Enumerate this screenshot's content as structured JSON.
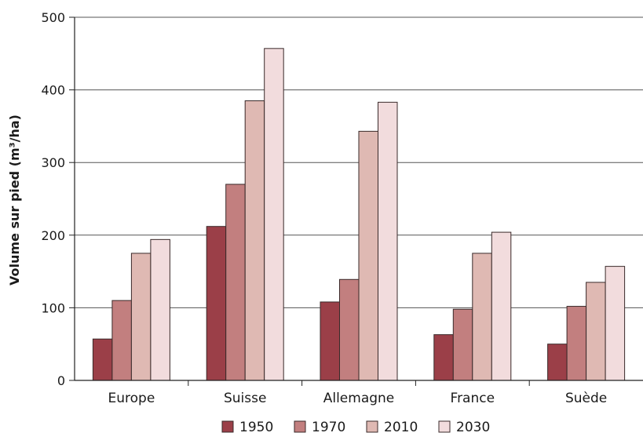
{
  "chart_data": {
    "type": "bar",
    "ylabel": "Volume sur pied (m³/ha)",
    "xlabel": "",
    "ylim": [
      0,
      500
    ],
    "yticks": [
      "0",
      "100",
      "200",
      "300",
      "400",
      "500"
    ],
    "grid": "horizontal",
    "legend_position": "bottom",
    "categories": [
      "Europe",
      "Suisse",
      "Allemagne",
      "France",
      "Suède"
    ],
    "series": [
      {
        "name": "1950",
        "color": "#9b3f48",
        "values": [
          57,
          212,
          108,
          63,
          50
        ]
      },
      {
        "name": "1970",
        "color": "#c27f7f",
        "values": [
          110,
          270,
          139,
          98,
          102
        ]
      },
      {
        "name": "2010",
        "color": "#dfb9b3",
        "values": [
          175,
          385,
          343,
          175,
          135
        ]
      },
      {
        "name": "2030",
        "color": "#f2dcdd",
        "values": [
          194,
          457,
          383,
          204,
          157
        ]
      }
    ]
  }
}
